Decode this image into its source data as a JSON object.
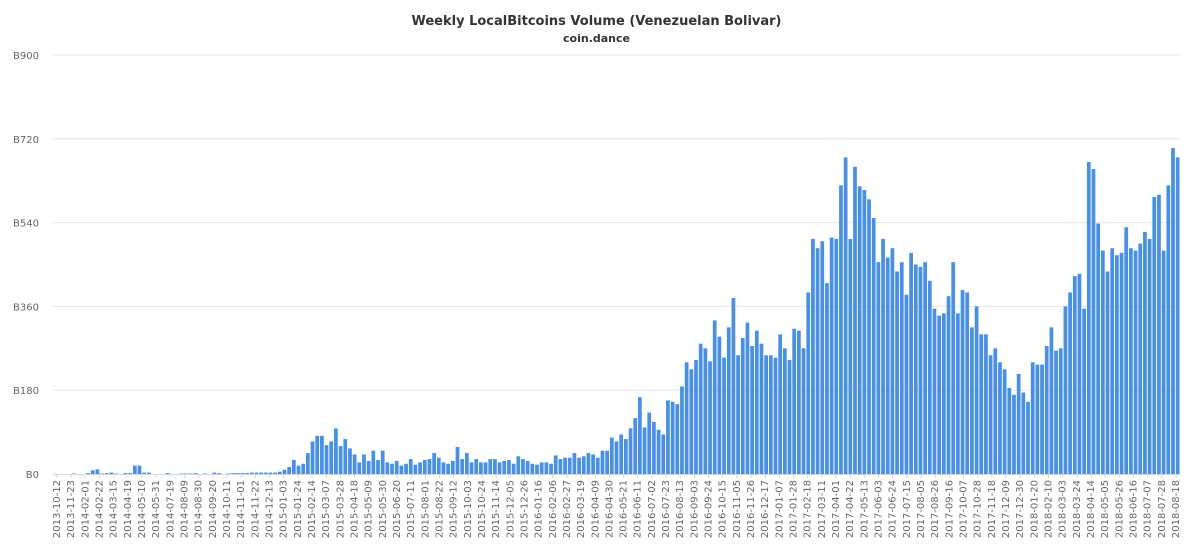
{
  "chart_data": {
    "type": "bar",
    "title": "Weekly LocalBitcoins Volume (Venezuelan Bolivar)",
    "subtitle": "coin.dance",
    "xlabel": "",
    "ylabel": "",
    "ylim": [
      0,
      900
    ],
    "y_ticks": [
      "B0",
      "B180",
      "B360",
      "B540",
      "B720",
      "B900"
    ],
    "y_tick_values": [
      0,
      180,
      360,
      540,
      720,
      900
    ],
    "grid": true,
    "legend": "none",
    "colors": {
      "bar": "#4a90e2",
      "grid": "#e6e6e6",
      "text": "#333333",
      "tick": "#666666"
    },
    "x_tick_labels": [
      "2013-10-12",
      "2013-11-23",
      "2014-02-01",
      "2014-02-22",
      "2014-03-15",
      "2014-04-19",
      "2014-05-10",
      "2014-05-31",
      "2014-07-19",
      "2014-08-09",
      "2014-08-30",
      "2014-09-20",
      "2014-10-11",
      "2014-11-01",
      "2014-11-22",
      "2014-12-13",
      "2015-01-03",
      "2015-01-24",
      "2015-02-14",
      "2015-03-07",
      "2015-03-28",
      "2015-04-18",
      "2015-05-09",
      "2015-05-30",
      "2015-06-20",
      "2015-07-11",
      "2015-08-01",
      "2015-08-22",
      "2015-09-12",
      "2015-10-03",
      "2015-10-24",
      "2015-11-14",
      "2015-12-05",
      "2015-12-26",
      "2016-01-16",
      "2016-02-06",
      "2016-02-27",
      "2016-03-19",
      "2016-04-09",
      "2016-04-30",
      "2016-05-21",
      "2016-06-11",
      "2016-07-02",
      "2016-07-23",
      "2016-08-13",
      "2016-09-03",
      "2016-09-24",
      "2016-10-15",
      "2016-11-05",
      "2016-11-26",
      "2016-12-17",
      "2017-01-07",
      "2017-01-28",
      "2017-02-18",
      "2017-03-11",
      "2017-04-01",
      "2017-04-22",
      "2017-05-13",
      "2017-06-03",
      "2017-06-24",
      "2017-07-15",
      "2017-08-05",
      "2017-08-26",
      "2017-09-16",
      "2017-10-07",
      "2017-10-28",
      "2017-11-18",
      "2017-12-09",
      "2017-12-30",
      "2018-01-20",
      "2018-02-10",
      "2018-03-03",
      "2018-03-24",
      "2018-04-14",
      "2018-05-05",
      "2018-05-26",
      "2018-06-16",
      "2018-07-07",
      "2018-07-28",
      "2018-08-18"
    ],
    "values": [
      0,
      0,
      0,
      0,
      1,
      0,
      0,
      2,
      8,
      10,
      1,
      2,
      3,
      1,
      0,
      2,
      2,
      18,
      18,
      3,
      3,
      0,
      0,
      0,
      2,
      0,
      0,
      1,
      1,
      1,
      2,
      0,
      1,
      0,
      3,
      2,
      0,
      1,
      2,
      2,
      2,
      2,
      3,
      3,
      3,
      3,
      3,
      3,
      5,
      9,
      15,
      30,
      18,
      22,
      45,
      70,
      82,
      82,
      62,
      70,
      98,
      60,
      75,
      55,
      42,
      25,
      42,
      28,
      50,
      30,
      50,
      25,
      22,
      28,
      18,
      22,
      32,
      20,
      25,
      30,
      32,
      45,
      35,
      25,
      22,
      28,
      58,
      32,
      45,
      25,
      32,
      25,
      25,
      32,
      32,
      25,
      28,
      30,
      22,
      38,
      32,
      28,
      22,
      20,
      25,
      25,
      22,
      40,
      32,
      35,
      35,
      45,
      35,
      38,
      45,
      42,
      35,
      50,
      50,
      78,
      70,
      85,
      75,
      98,
      120,
      165,
      100,
      132,
      112,
      95,
      85,
      158,
      155,
      150,
      188,
      240,
      225,
      245,
      280,
      270,
      242,
      330,
      295,
      250,
      315,
      378,
      255,
      292,
      325,
      275,
      308,
      280,
      255,
      255,
      250,
      300,
      270,
      245,
      312,
      308,
      270,
      390,
      505,
      485,
      500,
      410,
      508,
      505,
      620,
      680,
      505,
      660,
      618,
      610,
      590,
      550,
      455,
      505,
      465,
      485,
      435,
      455,
      385,
      475,
      450,
      445,
      455,
      415,
      355,
      340,
      345,
      382,
      455,
      345,
      395,
      390,
      315,
      360,
      300,
      300,
      255,
      270,
      240,
      225,
      185,
      170,
      215,
      175,
      155,
      240,
      235,
      235,
      275,
      315,
      265,
      270,
      360,
      390,
      425,
      430,
      355,
      670,
      655,
      538,
      480,
      435,
      485,
      470,
      475,
      530,
      485,
      480,
      495,
      520,
      505,
      595,
      600,
      480,
      620,
      700,
      680
    ],
    "week_span": {
      "first": "2013-10-12",
      "last": "2018-08-18"
    }
  }
}
